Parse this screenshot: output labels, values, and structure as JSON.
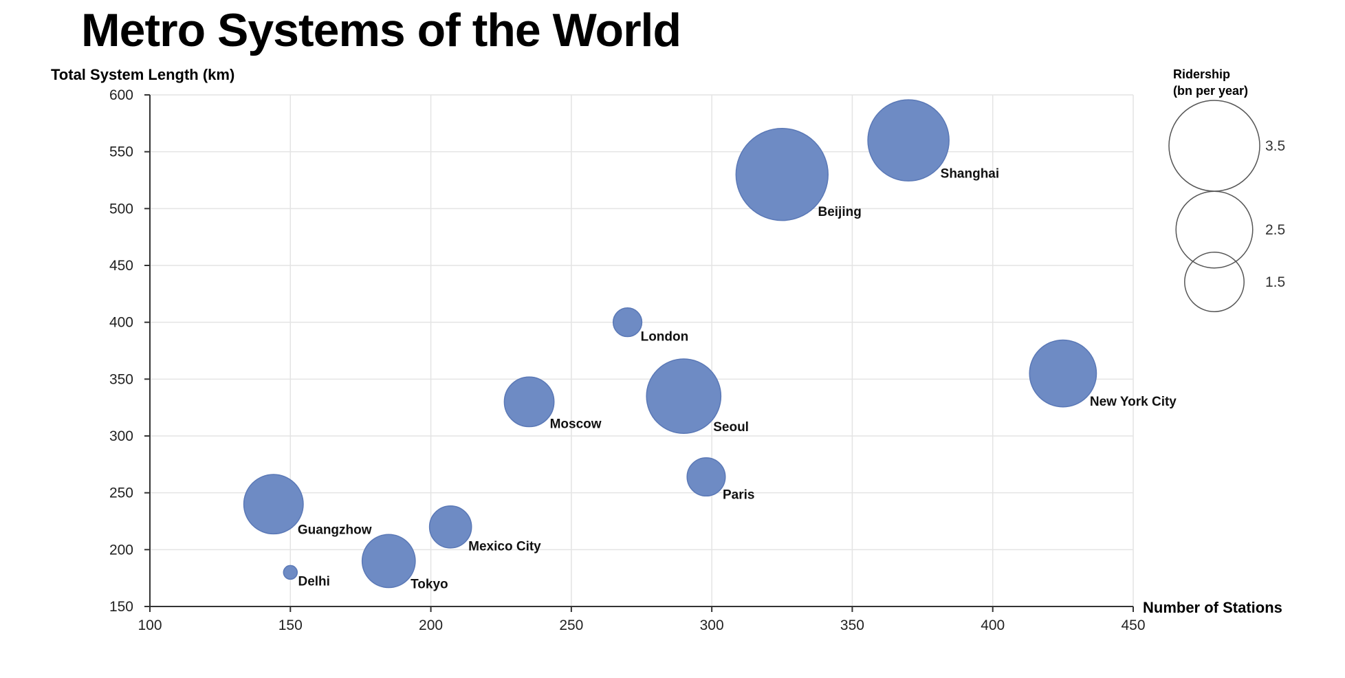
{
  "chart_data": {
    "type": "scatter",
    "title": "Metro Systems of the World",
    "xlabel": "Number of Stations",
    "ylabel": "Total System Length (km)",
    "xlim": [
      100,
      450
    ],
    "ylim": [
      150,
      600
    ],
    "xticks": [
      100,
      150,
      200,
      250,
      300,
      350,
      400,
      450
    ],
    "yticks": [
      150,
      200,
      250,
      300,
      350,
      400,
      450,
      500,
      550,
      600
    ],
    "grid": true,
    "bubble_color": "#6987c2",
    "size_legend": {
      "title": [
        "Ridership",
        "(bn per year)"
      ],
      "values": [
        3.5,
        2.5,
        1.5
      ],
      "labels": [
        "3.5",
        "2.5",
        "1.5"
      ],
      "placement": "top-right"
    },
    "points": [
      {
        "name": "Beijing",
        "x": 325,
        "y": 530,
        "ridership": 3.6
      },
      {
        "name": "Shanghai",
        "x": 370,
        "y": 560,
        "ridership": 2.8
      },
      {
        "name": "London",
        "x": 270,
        "y": 400,
        "ridership": 0.35
      },
      {
        "name": "New York City",
        "x": 425,
        "y": 355,
        "ridership": 1.9
      },
      {
        "name": "Moscow",
        "x": 235,
        "y": 330,
        "ridership": 1.05
      },
      {
        "name": "Seoul",
        "x": 290,
        "y": 335,
        "ridership": 2.35
      },
      {
        "name": "Paris",
        "x": 298,
        "y": 264,
        "ridership": 0.62
      },
      {
        "name": "Guangzhow",
        "x": 144,
        "y": 240,
        "ridership": 1.5
      },
      {
        "name": "Mexico City",
        "x": 207,
        "y": 220,
        "ridership": 0.75
      },
      {
        "name": "Tokyo",
        "x": 185,
        "y": 190,
        "ridership": 1.2
      },
      {
        "name": "Delhi",
        "x": 150,
        "y": 180,
        "ridership": 0.08
      }
    ]
  }
}
